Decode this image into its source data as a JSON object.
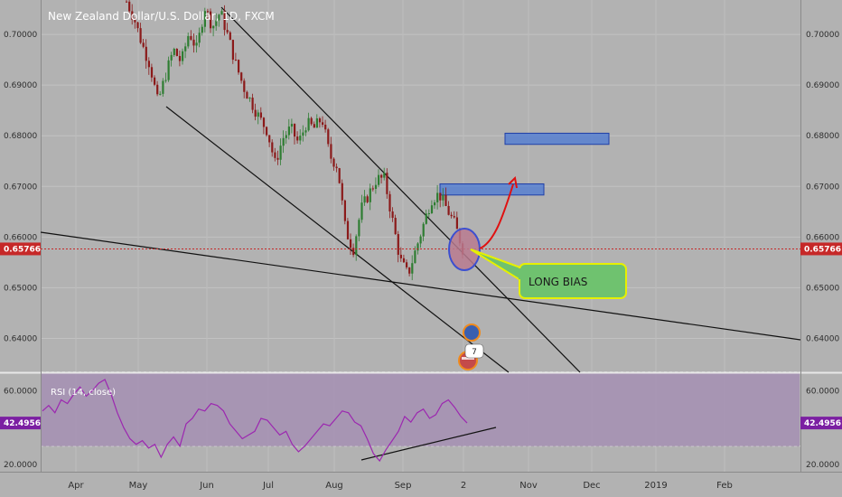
{
  "header": {
    "symbol_title": "New Zealand Dollar/U.S. Dollar, 1D, FXCM"
  },
  "colors": {
    "background": "#b2b2b2",
    "up_candle": "#2e7d32",
    "down_candle": "#8b1a1a",
    "trendline": "#111111",
    "last_price_line": "#c62828",
    "price_badge": "#c62828",
    "rsi_band": "#a58fb3",
    "rsi_line": "#9c27b0",
    "rsi_badge": "#7b1fa2",
    "zone_fill": "#4a78d4",
    "callout_fill": "#6fc26f",
    "callout_border": "#e6f000",
    "ellipse_fill": "#b87a8f",
    "ellipse_border": "#3c4fd0",
    "arrow_color": "#e01010"
  },
  "chart_data": [
    {
      "type": "candlestick",
      "title": "New Zealand Dollar/U.S. Dollar, 1D, FXCM",
      "x_tick_labels": [
        "Apr",
        "May",
        "Jun",
        "Jul",
        "Aug",
        "Sep",
        "2",
        "Nov",
        "Dec",
        "2019",
        "Feb"
      ],
      "y_tick_labels": [
        "0.70000",
        "0.69000",
        "0.68000",
        "0.67000",
        "0.66000",
        "0.65000",
        "0.64000"
      ],
      "ylim": [
        0.6333,
        0.7068
      ],
      "last_price": 0.65766,
      "last_price_label": "0.65766",
      "price_path": [
        0.7065,
        0.703,
        0.698,
        0.694,
        0.6865,
        0.692,
        0.697,
        0.6945,
        0.7005,
        0.697,
        0.7055,
        0.7015,
        0.7045,
        0.6995,
        0.694,
        0.6895,
        0.6865,
        0.6835,
        0.681,
        0.6745,
        0.6795,
        0.6815,
        0.6785,
        0.6825,
        0.6815,
        0.6835,
        0.676,
        0.674,
        0.6615,
        0.6575,
        0.6655,
        0.6685,
        0.6715,
        0.6715,
        0.6635,
        0.6555,
        0.6525,
        0.6575,
        0.6625,
        0.6675,
        0.6685,
        0.6655,
        0.6625,
        0.6577
      ],
      "zones": [
        {
          "from": 0.6805,
          "to": 0.6783
        },
        {
          "from": 0.6705,
          "to": 0.6683
        }
      ],
      "annotations": {
        "callout_text": "LONG BIAS",
        "event_badge_count": "7"
      }
    },
    {
      "type": "line",
      "title": "RSI (14, close)",
      "y_tick_labels": [
        "60.0000",
        "20.0000"
      ],
      "ylim": [
        16.2,
        69.4
      ],
      "band": [
        30,
        70
      ],
      "last_value_label": "42.4956",
      "values": [
        49,
        52,
        48,
        55,
        53,
        58,
        62,
        57,
        60,
        64,
        66,
        58,
        48,
        40,
        34,
        31,
        33,
        29,
        31,
        24,
        31,
        35,
        30,
        42,
        45,
        50,
        49,
        53,
        52,
        49,
        42,
        38,
        34,
        36,
        38,
        45,
        44,
        40,
        36,
        38,
        31,
        27,
        30,
        34,
        38,
        42,
        41,
        45,
        49,
        48,
        43,
        41,
        34,
        26,
        22,
        28,
        33,
        38,
        46,
        43,
        48,
        50,
        45,
        47,
        53,
        55,
        51,
        46,
        42.5
      ]
    }
  ]
}
